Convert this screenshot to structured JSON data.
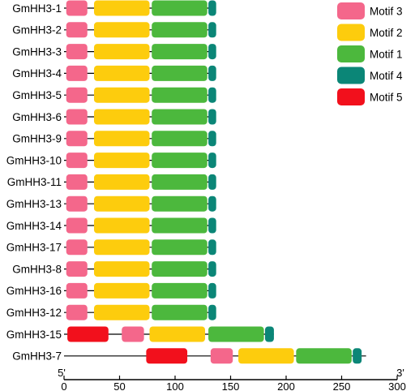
{
  "chart_data": {
    "type": "motif-diagram",
    "axis": {
      "min": 0,
      "max": 300,
      "ticks": [
        0,
        50,
        100,
        150,
        200,
        250,
        300
      ],
      "start_label": "5'",
      "end_label": "3'"
    },
    "motifs": [
      {
        "name": "Motif 3",
        "color": "#f4678b"
      },
      {
        "name": "Motif 2",
        "color": "#fdcc0d"
      },
      {
        "name": "Motif 1",
        "color": "#4cb83d"
      },
      {
        "name": "Motif 4",
        "color": "#0b8677"
      },
      {
        "name": "Motif 5",
        "color": "#f2101c"
      }
    ],
    "genes": [
      {
        "name": "GmHH3-1",
        "length": 136,
        "features": [
          {
            "motif": "Motif 3",
            "start": 2,
            "end": 21
          },
          {
            "motif": "Motif 2",
            "start": 27,
            "end": 77
          },
          {
            "motif": "Motif 1",
            "start": 79,
            "end": 129
          },
          {
            "motif": "Motif 4",
            "start": 130,
            "end": 137
          }
        ]
      },
      {
        "name": "GmHH3-2",
        "length": 136,
        "features": [
          {
            "motif": "Motif 3",
            "start": 2,
            "end": 21
          },
          {
            "motif": "Motif 2",
            "start": 27,
            "end": 77
          },
          {
            "motif": "Motif 1",
            "start": 79,
            "end": 129
          },
          {
            "motif": "Motif 4",
            "start": 130,
            "end": 137
          }
        ]
      },
      {
        "name": "GmHH3-3",
        "length": 136,
        "features": [
          {
            "motif": "Motif 3",
            "start": 2,
            "end": 21
          },
          {
            "motif": "Motif 2",
            "start": 27,
            "end": 77
          },
          {
            "motif": "Motif 1",
            "start": 79,
            "end": 129
          },
          {
            "motif": "Motif 4",
            "start": 130,
            "end": 137
          }
        ]
      },
      {
        "name": "GmHH3-4",
        "length": 136,
        "features": [
          {
            "motif": "Motif 3",
            "start": 2,
            "end": 21
          },
          {
            "motif": "Motif 2",
            "start": 27,
            "end": 77
          },
          {
            "motif": "Motif 1",
            "start": 79,
            "end": 129
          },
          {
            "motif": "Motif 4",
            "start": 130,
            "end": 137
          }
        ]
      },
      {
        "name": "GmHH3-5",
        "length": 136,
        "features": [
          {
            "motif": "Motif 3",
            "start": 2,
            "end": 21
          },
          {
            "motif": "Motif 2",
            "start": 27,
            "end": 77
          },
          {
            "motif": "Motif 1",
            "start": 79,
            "end": 129
          },
          {
            "motif": "Motif 4",
            "start": 130,
            "end": 137
          }
        ]
      },
      {
        "name": "GmHH3-6",
        "length": 136,
        "features": [
          {
            "motif": "Motif 3",
            "start": 2,
            "end": 21
          },
          {
            "motif": "Motif 2",
            "start": 27,
            "end": 77
          },
          {
            "motif": "Motif 1",
            "start": 79,
            "end": 129
          },
          {
            "motif": "Motif 4",
            "start": 130,
            "end": 137
          }
        ]
      },
      {
        "name": "GmHH3-9",
        "length": 136,
        "features": [
          {
            "motif": "Motif 3",
            "start": 2,
            "end": 21
          },
          {
            "motif": "Motif 2",
            "start": 27,
            "end": 77
          },
          {
            "motif": "Motif 1",
            "start": 79,
            "end": 129
          },
          {
            "motif": "Motif 4",
            "start": 130,
            "end": 137
          }
        ]
      },
      {
        "name": "GmHH3-10",
        "length": 136,
        "features": [
          {
            "motif": "Motif 3",
            "start": 2,
            "end": 21
          },
          {
            "motif": "Motif 2",
            "start": 27,
            "end": 77
          },
          {
            "motif": "Motif 1",
            "start": 79,
            "end": 129
          },
          {
            "motif": "Motif 4",
            "start": 130,
            "end": 137
          }
        ]
      },
      {
        "name": "GmHH3-11",
        "length": 136,
        "features": [
          {
            "motif": "Motif 3",
            "start": 2,
            "end": 21
          },
          {
            "motif": "Motif 2",
            "start": 27,
            "end": 77
          },
          {
            "motif": "Motif 1",
            "start": 79,
            "end": 129
          },
          {
            "motif": "Motif 4",
            "start": 130,
            "end": 137
          }
        ]
      },
      {
        "name": "GmHH3-13",
        "length": 136,
        "features": [
          {
            "motif": "Motif 3",
            "start": 2,
            "end": 21
          },
          {
            "motif": "Motif 2",
            "start": 27,
            "end": 77
          },
          {
            "motif": "Motif 1",
            "start": 79,
            "end": 129
          },
          {
            "motif": "Motif 4",
            "start": 130,
            "end": 137
          }
        ]
      },
      {
        "name": "GmHH3-14",
        "length": 136,
        "features": [
          {
            "motif": "Motif 3",
            "start": 2,
            "end": 21
          },
          {
            "motif": "Motif 2",
            "start": 27,
            "end": 77
          },
          {
            "motif": "Motif 1",
            "start": 79,
            "end": 129
          },
          {
            "motif": "Motif 4",
            "start": 130,
            "end": 137
          }
        ]
      },
      {
        "name": "GmHH3-17",
        "length": 136,
        "features": [
          {
            "motif": "Motif 3",
            "start": 2,
            "end": 21
          },
          {
            "motif": "Motif 2",
            "start": 27,
            "end": 77
          },
          {
            "motif": "Motif 1",
            "start": 79,
            "end": 129
          },
          {
            "motif": "Motif 4",
            "start": 130,
            "end": 137
          }
        ]
      },
      {
        "name": "GmHH3-8",
        "length": 136,
        "features": [
          {
            "motif": "Motif 3",
            "start": 2,
            "end": 21
          },
          {
            "motif": "Motif 2",
            "start": 27,
            "end": 77
          },
          {
            "motif": "Motif 1",
            "start": 79,
            "end": 129
          },
          {
            "motif": "Motif 4",
            "start": 130,
            "end": 137
          }
        ]
      },
      {
        "name": "GmHH3-16",
        "length": 136,
        "features": [
          {
            "motif": "Motif 3",
            "start": 2,
            "end": 21
          },
          {
            "motif": "Motif 2",
            "start": 27,
            "end": 77
          },
          {
            "motif": "Motif 1",
            "start": 79,
            "end": 129
          },
          {
            "motif": "Motif 4",
            "start": 130,
            "end": 137
          }
        ]
      },
      {
        "name": "GmHH3-12",
        "length": 136,
        "features": [
          {
            "motif": "Motif 3",
            "start": 2,
            "end": 21
          },
          {
            "motif": "Motif 2",
            "start": 27,
            "end": 77
          },
          {
            "motif": "Motif 1",
            "start": 79,
            "end": 129
          },
          {
            "motif": "Motif 4",
            "start": 130,
            "end": 137
          }
        ]
      },
      {
        "name": "GmHH3-15",
        "length": 189,
        "features": [
          {
            "motif": "Motif 5",
            "start": 3,
            "end": 40
          },
          {
            "motif": "Motif 3",
            "start": 52,
            "end": 72
          },
          {
            "motif": "Motif 2",
            "start": 77,
            "end": 127
          },
          {
            "motif": "Motif 1",
            "start": 130,
            "end": 180
          },
          {
            "motif": "Motif 4",
            "start": 181,
            "end": 189
          }
        ]
      },
      {
        "name": "GmHH3-7",
        "length": 272,
        "features": [
          {
            "motif": "Motif 5",
            "start": 74,
            "end": 111
          },
          {
            "motif": "Motif 3",
            "start": 132,
            "end": 152
          },
          {
            "motif": "Motif 2",
            "start": 157,
            "end": 207
          },
          {
            "motif": "Motif 1",
            "start": 209,
            "end": 259
          },
          {
            "motif": "Motif 4",
            "start": 260,
            "end": 268
          }
        ]
      }
    ]
  }
}
